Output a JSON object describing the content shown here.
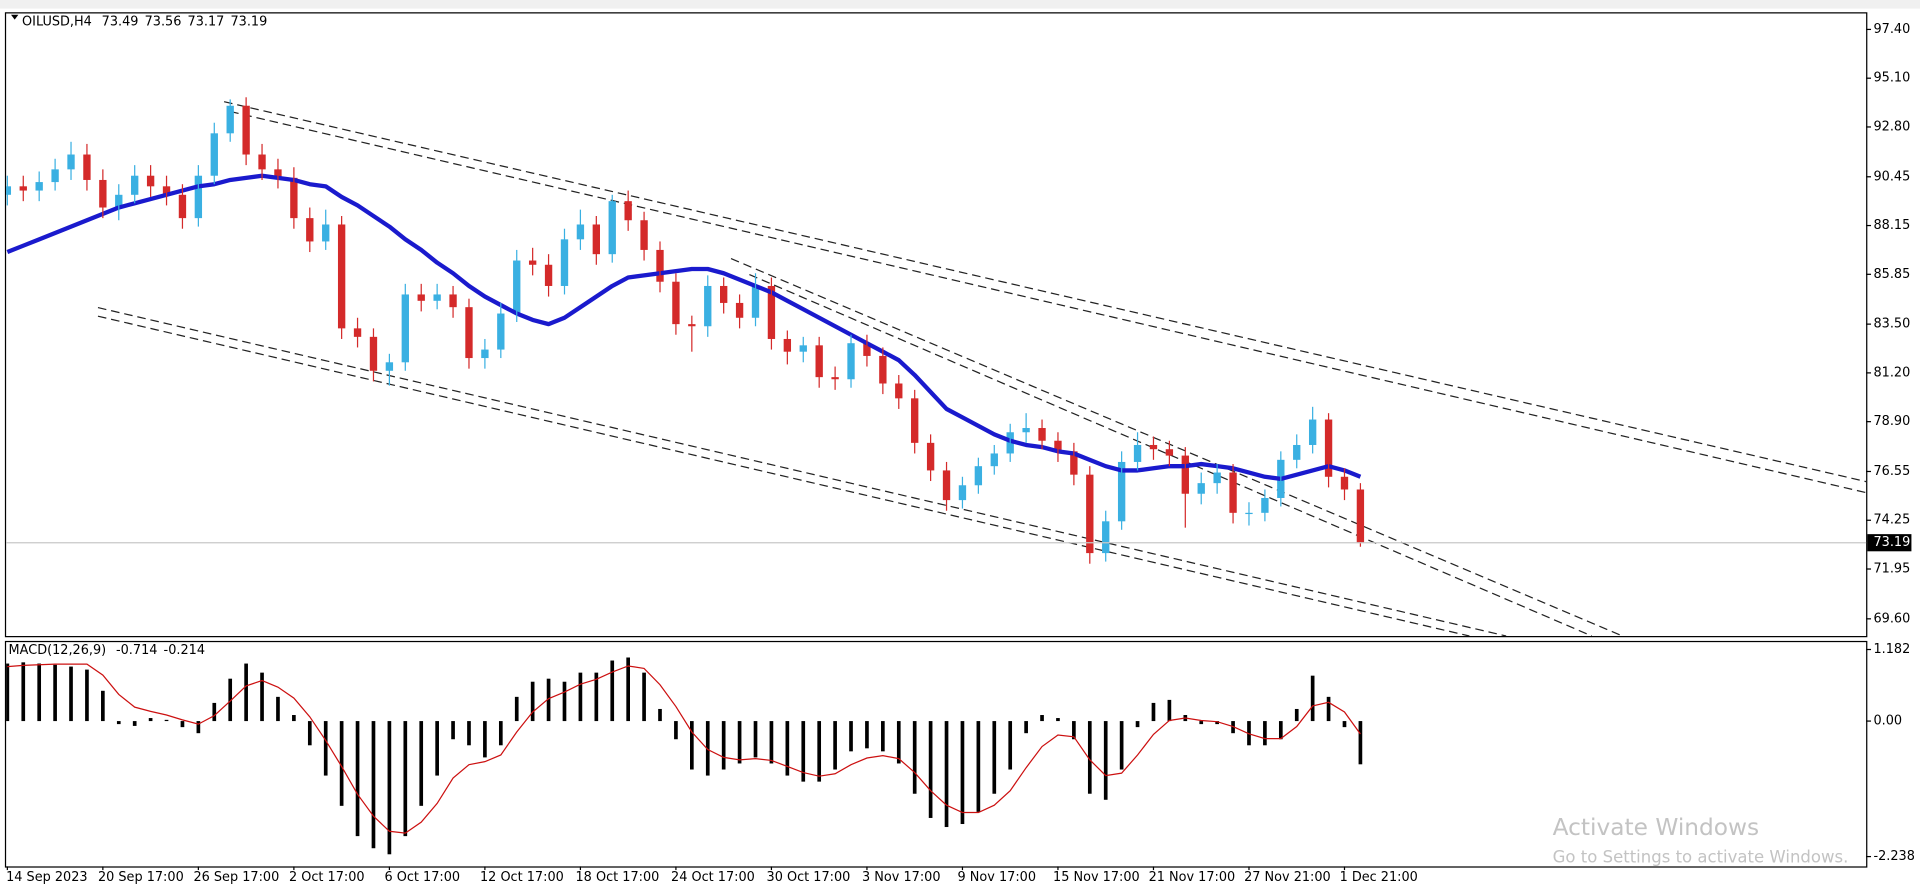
{
  "chart_data": [
    {
      "type": "candlestick",
      "title": "OILUSD,H4",
      "quote": [
        73.49,
        73.56,
        73.17,
        73.19
      ],
      "categories": [
        "14 Sep 2023",
        null,
        null,
        null,
        null,
        null,
        "20 Sep 17:00",
        null,
        null,
        null,
        null,
        null,
        "26 Sep 17:00",
        null,
        null,
        null,
        null,
        null,
        "2 Oct 17:00",
        null,
        null,
        null,
        null,
        null,
        "6 Oct 17:00",
        null,
        null,
        null,
        null,
        null,
        "12 Oct 17:00",
        null,
        null,
        null,
        null,
        null,
        "18 Oct 17:00",
        null,
        null,
        null,
        null,
        null,
        "24 Oct 17:00",
        null,
        null,
        null,
        null,
        null,
        "30 Oct 17:00",
        null,
        null,
        null,
        null,
        null,
        "3 Nov 17:00",
        null,
        null,
        null,
        null,
        null,
        "9 Nov 17:00",
        null,
        null,
        null,
        null,
        null,
        "15 Nov 17:00",
        null,
        null,
        null,
        null,
        null,
        "21 Nov 17:00",
        null,
        null,
        null,
        null,
        null,
        "27 Nov 21:00",
        null,
        null,
        null,
        null,
        null,
        "1 Dec 21:00",
        null
      ],
      "open": [
        89.6,
        90.0,
        89.8,
        90.2,
        90.8,
        91.5,
        90.3,
        89.0,
        89.6,
        90.5,
        90.0,
        89.6,
        88.5,
        90.5,
        92.5,
        93.8,
        91.5,
        90.8,
        90.4,
        88.5,
        87.4,
        88.2,
        83.3,
        82.9,
        81.3,
        81.7,
        84.9,
        84.6,
        84.9,
        84.3,
        81.9,
        82.3,
        84.0,
        86.5,
        86.3,
        85.3,
        87.5,
        88.2,
        86.8,
        89.3,
        88.4,
        87.0,
        85.5,
        83.5,
        83.4,
        85.3,
        84.5,
        83.8,
        85.3,
        82.8,
        82.2,
        82.5,
        81.0,
        80.9,
        82.6,
        82.0,
        80.7,
        80.0,
        77.9,
        76.6,
        75.2,
        75.9,
        76.8,
        77.4,
        78.4,
        78.6,
        78.0,
        77.5,
        76.4,
        72.7,
        74.2,
        77.0,
        77.8,
        77.6,
        77.3,
        75.5,
        76.0,
        76.5,
        74.6,
        74.6,
        75.3,
        77.1,
        77.8,
        79.0,
        76.3,
        75.7
      ],
      "high": [
        90.5,
        90.5,
        90.7,
        91.3,
        92.1,
        92.0,
        90.8,
        90.1,
        91.0,
        91.0,
        90.5,
        90.1,
        91.0,
        93.0,
        94.1,
        94.2,
        92.0,
        91.3,
        90.9,
        89.0,
        88.9,
        88.6,
        83.8,
        83.3,
        82.1,
        85.4,
        85.4,
        85.4,
        85.3,
        84.7,
        82.8,
        84.5,
        87.0,
        87.1,
        86.8,
        88.0,
        88.9,
        88.6,
        89.6,
        89.8,
        88.8,
        87.4,
        85.9,
        83.9,
        85.8,
        85.7,
        84.9,
        85.9,
        85.7,
        83.2,
        82.9,
        82.9,
        81.5,
        83.0,
        83.0,
        82.4,
        81.1,
        80.4,
        78.3,
        77.0,
        76.3,
        77.2,
        77.8,
        78.8,
        79.3,
        79.0,
        78.4,
        77.9,
        76.8,
        74.7,
        77.5,
        78.4,
        78.2,
        78.0,
        77.7,
        76.5,
        76.9,
        76.9,
        75.1,
        75.7,
        77.5,
        78.3,
        79.6,
        79.3,
        76.7,
        76.0
      ],
      "low": [
        89.1,
        89.3,
        89.3,
        89.8,
        90.3,
        89.8,
        88.5,
        88.4,
        89.2,
        89.5,
        89.1,
        88.0,
        88.1,
        90.1,
        92.1,
        91.0,
        90.3,
        89.9,
        88.0,
        86.9,
        87.0,
        82.8,
        82.4,
        80.8,
        80.6,
        81.3,
        84.1,
        84.2,
        83.8,
        81.4,
        81.4,
        81.9,
        83.6,
        85.8,
        84.8,
        84.9,
        87.0,
        86.3,
        86.4,
        87.9,
        86.5,
        85.0,
        83.0,
        82.2,
        82.9,
        84.0,
        83.3,
        83.4,
        82.3,
        81.6,
        81.7,
        80.5,
        80.4,
        80.5,
        81.5,
        80.2,
        79.5,
        77.4,
        76.1,
        74.7,
        74.8,
        75.5,
        76.4,
        77.0,
        77.9,
        77.6,
        77.0,
        75.9,
        72.2,
        72.3,
        73.8,
        76.6,
        77.1,
        76.8,
        73.9,
        75.0,
        75.5,
        74.1,
        74.0,
        74.2,
        74.9,
        76.7,
        77.4,
        75.8,
        75.2,
        73.0
      ],
      "close": [
        90.0,
        89.8,
        90.2,
        90.8,
        91.5,
        90.3,
        89.0,
        89.6,
        90.5,
        90.0,
        89.6,
        88.5,
        90.5,
        92.5,
        93.8,
        91.5,
        90.8,
        90.4,
        88.5,
        87.4,
        88.2,
        83.3,
        82.9,
        81.3,
        81.7,
        84.9,
        84.6,
        84.9,
        84.3,
        81.9,
        82.3,
        84.0,
        86.5,
        86.3,
        85.3,
        87.5,
        88.2,
        86.8,
        89.3,
        88.4,
        87.0,
        85.5,
        83.5,
        83.4,
        85.3,
        84.5,
        83.8,
        85.3,
        82.8,
        82.2,
        82.5,
        81.0,
        80.9,
        82.6,
        82.0,
        80.7,
        80.0,
        77.9,
        76.6,
        75.2,
        75.9,
        76.8,
        77.4,
        78.4,
        78.6,
        78.0,
        77.5,
        76.4,
        72.7,
        74.2,
        77.0,
        77.8,
        77.6,
        77.3,
        75.5,
        76.0,
        76.5,
        74.6,
        74.6,
        75.3,
        77.1,
        77.8,
        79.0,
        76.3,
        75.7,
        73.19
      ],
      "up_color": "#3ab0e2",
      "down_color": "#d42a2a",
      "overlay": {
        "color": "#1a1acd",
        "values": [
          86.9,
          87.2,
          87.5,
          87.8,
          88.1,
          88.4,
          88.7,
          89.0,
          89.2,
          89.4,
          89.6,
          89.8,
          90.0,
          90.1,
          90.3,
          90.4,
          90.5,
          90.4,
          90.3,
          90.1,
          90.0,
          89.5,
          89.1,
          88.6,
          88.1,
          87.5,
          87.0,
          86.4,
          85.9,
          85.3,
          84.8,
          84.4,
          84.0,
          83.7,
          83.5,
          83.8,
          84.3,
          84.8,
          85.3,
          85.7,
          85.8,
          85.9,
          86.0,
          86.1,
          86.1,
          85.9,
          85.6,
          85.3,
          85.0,
          84.6,
          84.2,
          83.8,
          83.4,
          83.0,
          82.6,
          82.2,
          81.8,
          81.1,
          80.3,
          79.5,
          79.1,
          78.7,
          78.3,
          78.0,
          77.8,
          77.7,
          77.5,
          77.4,
          77.1,
          76.8,
          76.6,
          76.6,
          76.7,
          76.8,
          76.8,
          76.9,
          76.8,
          76.7,
          76.5,
          76.3,
          76.2,
          76.4,
          76.6,
          76.8,
          76.6,
          76.3
        ]
      },
      "ylim": [
        68.79,
        98.21
      ],
      "yticks": [
        {
          "value": 97.4,
          "label": "97.40"
        },
        {
          "value": 95.1,
          "label": "95.10"
        },
        {
          "value": 92.8,
          "label": "92.80"
        },
        90.45,
        88.15,
        85.85,
        {
          "value": 83.5,
          "label": "83.50"
        },
        {
          "value": 81.2,
          "label": "81.20"
        },
        {
          "value": 78.9,
          "label": "78.90"
        },
        76.55,
        74.25,
        71.95,
        {
          "value": 69.6,
          "label": "69.60"
        }
      ]
    },
    {
      "type": "macd",
      "title": "MACD(12,26,9)",
      "quote": [
        -0.714,
        -0.214
      ],
      "histogram": {
        "color": "#000000",
        "values": [
          0.95,
          0.97,
          0.95,
          0.93,
          0.9,
          0.85,
          0.5,
          -0.05,
          -0.08,
          0.05,
          0.02,
          -0.1,
          -0.2,
          0.3,
          0.7,
          0.95,
          0.8,
          0.4,
          0.1,
          -0.4,
          -0.9,
          -1.4,
          -1.9,
          -2.1,
          -2.2,
          -1.9,
          -1.4,
          -0.9,
          -0.3,
          -0.4,
          -0.6,
          -0.4,
          0.4,
          0.65,
          0.7,
          0.65,
          0.8,
          0.8,
          1.0,
          1.05,
          0.8,
          0.2,
          -0.3,
          -0.8,
          -0.9,
          -0.8,
          -0.7,
          -0.6,
          -0.7,
          -0.9,
          -1.0,
          -1.0,
          -0.8,
          -0.5,
          -0.45,
          -0.5,
          -0.7,
          -1.2,
          -1.6,
          -1.75,
          -1.7,
          -1.5,
          -1.2,
          -0.8,
          -0.2,
          0.1,
          0.05,
          -0.3,
          -1.2,
          -1.3,
          -0.8,
          -0.1,
          0.3,
          0.35,
          0.1,
          -0.05,
          -0.05,
          -0.2,
          -0.4,
          -0.4,
          -0.3,
          0.2,
          0.75,
          0.4,
          -0.1,
          -0.714
        ]
      },
      "signal": {
        "color": "#cc1010",
        "values": [
          0.9,
          0.92,
          0.93,
          0.94,
          0.94,
          0.94,
          0.76,
          0.44,
          0.23,
          0.16,
          0.1,
          0.02,
          -0.05,
          0.09,
          0.33,
          0.58,
          0.67,
          0.56,
          0.38,
          0.07,
          -0.32,
          -0.75,
          -1.21,
          -1.57,
          -1.82,
          -1.85,
          -1.67,
          -1.36,
          -0.94,
          -0.72,
          -0.67,
          -0.56,
          -0.18,
          0.15,
          0.37,
          0.48,
          0.61,
          0.69,
          0.81,
          0.91,
          0.87,
          0.6,
          0.24,
          -0.18,
          -0.47,
          -0.6,
          -0.64,
          -0.62,
          -0.65,
          -0.75,
          -0.85,
          -0.91,
          -0.87,
          -0.72,
          -0.61,
          -0.57,
          -0.62,
          -0.85,
          -1.15,
          -1.39,
          -1.51,
          -1.51,
          -1.39,
          -1.15,
          -0.77,
          -0.42,
          -0.23,
          -0.26,
          -0.64,
          -0.9,
          -0.86,
          -0.56,
          -0.22,
          0.01,
          0.05,
          0.01,
          -0.01,
          -0.09,
          -0.21,
          -0.29,
          -0.29,
          -0.09,
          0.25,
          0.31,
          0.15,
          -0.214
        ]
      },
      "ylim": [
        -2.4,
        1.324
      ],
      "yticks": [
        1.182,
        {
          "value": 0,
          "label": "0.00"
        },
        -2.238
      ]
    }
  ],
  "watermark": {
    "title": "Activate Windows",
    "subtitle": "Go to Settings to activate Windows."
  }
}
